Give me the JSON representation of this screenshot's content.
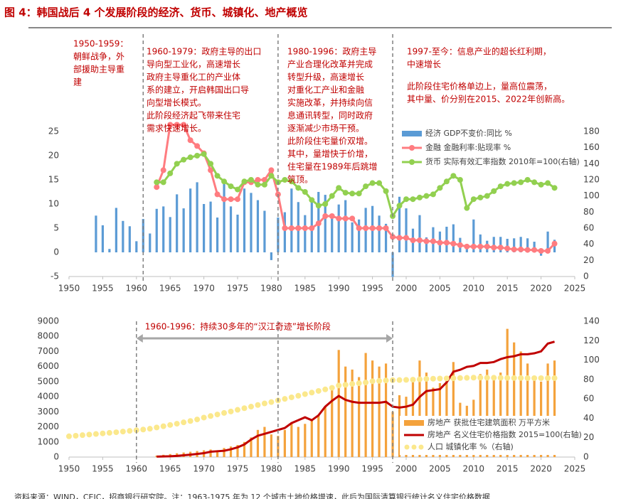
{
  "title": "图 4：韩国战后 4 个发展阶段的经济、货币、城镇化、地产概览",
  "footer": "资料来源：WIND，CEIC，招商银行研究院。注：1963-1975 年为 12 个城市土地价格增速，此后为国际清算银行统计名义住宅价格数据",
  "chart_data": [
    {
      "type": "combo",
      "legend": "top-right",
      "grid": false,
      "xlim": [
        1950,
        2025
      ],
      "xticks": [
        1950,
        1955,
        1960,
        1965,
        1970,
        1975,
        1980,
        1985,
        1990,
        1995,
        2000,
        2005,
        2010,
        2015,
        2020,
        2025
      ],
      "ylim": [
        -5,
        25
      ],
      "yticks": [
        -5,
        0,
        5,
        10,
        15,
        20,
        25
      ],
      "y2lim": [
        0,
        180
      ],
      "y2ticks": [
        0,
        20,
        40,
        60,
        80,
        100,
        120,
        140,
        160,
        180
      ],
      "dividers": [
        1961,
        1981,
        1998
      ],
      "annotations": [
        [
          "1950-1959：",
          "朝鲜战争，外",
          "部援助主导重",
          "建"
        ],
        [
          "1960-1979：政府主导的出口",
          "导向型工业化，高速增长",
          "  政府主导重化工的产业体",
          "系的建立，开启韩国出口导",
          "向型增长模式。",
          "  此阶段经济起飞带来住宅",
          "需求快速增长。"
        ],
        [
          "1980-1996：政府主导",
          "产业合理化改革并完成",
          "转型升级，高速增长",
          "  对重化工产业和金融",
          "实施改革，并持续向信",
          "息通讯转型，同时政府",
          "逐渐减少市场干预。",
          "  此阶段住宅量价双增。",
          "其中，量增快于价增，",
          "住宅量在1989年后跳增",
          "筑顶。"
        ],
        [
          "1997-至今：信息产业的超长红利期，",
          "中速增长"
        ],
        [
          "  此阶段住宅价格单边上，量高位震荡，",
          "其中量、价分别在2015、2022年创新高。"
        ]
      ],
      "series": [
        {
          "name": "经济 GDP不变价:同比 %",
          "type": "bar",
          "color": "#5b9bd5",
          "x": [
            1954,
            1955,
            1956,
            1957,
            1958,
            1959,
            1960,
            1961,
            1962,
            1963,
            1964,
            1965,
            1966,
            1967,
            1968,
            1969,
            1970,
            1971,
            1972,
            1973,
            1974,
            1975,
            1976,
            1977,
            1978,
            1979,
            1980,
            1981,
            1982,
            1983,
            1984,
            1985,
            1986,
            1987,
            1988,
            1989,
            1990,
            1991,
            1992,
            1993,
            1994,
            1995,
            1996,
            1997,
            1998,
            1999,
            2000,
            2001,
            2002,
            2003,
            2004,
            2005,
            2006,
            2007,
            2008,
            2009,
            2010,
            2011,
            2012,
            2013,
            2014,
            2015,
            2016,
            2017,
            2018,
            2019,
            2020,
            2021,
            2022
          ],
          "values": [
            7.6,
            5.6,
            0.7,
            9.2,
            6.5,
            5.4,
            2.3,
            6.9,
            3.9,
            9.0,
            9.5,
            7.3,
            12.0,
            9.1,
            13.2,
            14.5,
            10.0,
            10.5,
            7.2,
            14.9,
            9.5,
            7.8,
            13.2,
            12.3,
            10.8,
            8.6,
            -1.6,
            7.2,
            8.3,
            13.2,
            10.4,
            7.7,
            11.2,
            12.5,
            11.9,
            7.1,
            9.9,
            10.8,
            6.2,
            6.8,
            9.2,
            9.6,
            7.6,
            5.9,
            -5.1,
            11.5,
            9.1,
            4.9,
            7.7,
            3.1,
            5.2,
            4.3,
            5.3,
            5.8,
            3.0,
            0.8,
            6.8,
            3.7,
            2.4,
            3.2,
            3.2,
            2.8,
            2.9,
            3.2,
            2.9,
            2.2,
            -0.7,
            4.3,
            2.6
          ]
        },
        {
          "name": "金融 金融利率:贴现率 %",
          "type": "line",
          "marker": true,
          "color": "#ff7c80",
          "x": [
            1963,
            1964,
            1965,
            1966,
            1967,
            1968,
            1969,
            1970,
            1971,
            1972,
            1973,
            1974,
            1975,
            1976,
            1977,
            1978,
            1979,
            1980,
            1981,
            1982,
            1983,
            1984,
            1985,
            1986,
            1987,
            1988,
            1989,
            1990,
            1991,
            1992,
            1993,
            1994,
            1995,
            1996,
            1997,
            1998,
            1999,
            2000,
            2001,
            2002,
            2003,
            2004,
            2005,
            2006,
            2007,
            2008,
            2009,
            2010,
            2011,
            2012,
            2013,
            2014,
            2015,
            2016,
            2017,
            2018,
            2019,
            2020,
            2021,
            2022
          ],
          "values": [
            13.5,
            17.0,
            26.4,
            26.4,
            26.4,
            23.2,
            22.0,
            20.5,
            17.0,
            12.0,
            11.0,
            11.0,
            11.0,
            14.5,
            14.5,
            15.0,
            15.0,
            17.0,
            12.0,
            5.0,
            5.0,
            5.0,
            5.0,
            5.0,
            6.0,
            7.5,
            7.5,
            7.0,
            7.0,
            7.0,
            5.0,
            5.0,
            5.0,
            5.0,
            5.0,
            3.2,
            3.0,
            3.0,
            2.5,
            2.5,
            2.3,
            2.3,
            2.0,
            2.0,
            1.8,
            1.5,
            1.2,
            1.2,
            1.2,
            1.2,
            1.0,
            1.0,
            0.8,
            0.6,
            0.6,
            0.5,
            0.5,
            0.3,
            0.3,
            1.8
          ]
        },
        {
          "name": "货币 实际有效汇率指数 2010年=100(右轴)",
          "type": "line",
          "marker": true,
          "axis": "y2",
          "color": "#92d050",
          "x": [
            1963,
            1964,
            1965,
            1966,
            1967,
            1968,
            1969,
            1970,
            1971,
            1972,
            1973,
            1974,
            1975,
            1976,
            1977,
            1978,
            1979,
            1980,
            1981,
            1982,
            1983,
            1984,
            1985,
            1986,
            1987,
            1988,
            1989,
            1990,
            1991,
            1992,
            1993,
            1994,
            1995,
            1996,
            1997,
            1998,
            1999,
            2000,
            2001,
            2002,
            2003,
            2004,
            2005,
            2006,
            2007,
            2008,
            2009,
            2010,
            2011,
            2012,
            2013,
            2014,
            2015,
            2016,
            2017,
            2018,
            2019,
            2020,
            2021,
            2022
          ],
          "values": [
            117,
            117,
            128,
            140,
            145,
            148,
            150,
            152,
            140,
            125,
            118,
            112,
            108,
            118,
            120,
            114,
            114,
            125,
            117,
            120,
            118,
            110,
            105,
            95,
            88,
            90,
            100,
            110,
            104,
            103,
            103,
            112,
            116,
            116,
            106,
            75,
            88,
            96,
            96,
            98,
            100,
            102,
            110,
            118,
            125,
            120,
            85,
            96,
            98,
            100,
            106,
            112,
            115,
            116,
            117,
            120,
            117,
            114,
            116,
            110
          ]
        }
      ]
    },
    {
      "type": "combo",
      "legend": "bottom-right",
      "grid": false,
      "xlim": [
        1950,
        2025
      ],
      "xticks": [
        1950,
        1955,
        1960,
        1965,
        1970,
        1975,
        1980,
        1985,
        1990,
        1995,
        2000,
        2005,
        2010,
        2015,
        2020,
        2025
      ],
      "ylim": [
        0,
        9000
      ],
      "yticks": [
        0,
        1000,
        2000,
        3000,
        4000,
        5000,
        6000,
        7000,
        8000,
        9000
      ],
      "y2lim": [
        0,
        140
      ],
      "y2ticks": [
        0,
        20,
        40,
        60,
        80,
        100,
        120,
        140
      ],
      "dividers": [
        1960,
        1981,
        1998
      ],
      "arrow_label": "1960-1996：持续30多年的“汉江奇迹”增长阶段",
      "series": [
        {
          "name": "房地产 获批住宅建筑面积 万平方米",
          "type": "bar",
          "color": "#f4a23c",
          "x": [
            1963,
            1964,
            1965,
            1966,
            1967,
            1968,
            1969,
            1970,
            1971,
            1972,
            1973,
            1974,
            1975,
            1976,
            1977,
            1978,
            1979,
            1980,
            1981,
            1982,
            1983,
            1984,
            1985,
            1986,
            1987,
            1988,
            1989,
            1990,
            1991,
            1992,
            1993,
            1994,
            1995,
            1996,
            1997,
            1998,
            1999,
            2000,
            2001,
            2002,
            2003,
            2004,
            2005,
            2006,
            2007,
            2008,
            2009,
            2010,
            2011,
            2012,
            2013,
            2014,
            2015,
            2016,
            2017,
            2018,
            2019,
            2020,
            2021,
            2022
          ],
          "values": [
            100,
            150,
            200,
            250,
            300,
            350,
            400,
            450,
            500,
            450,
            600,
            700,
            800,
            1000,
            1300,
            1800,
            2000,
            1500,
            1400,
            1800,
            2300,
            2000,
            2200,
            2500,
            2800,
            3300,
            4500,
            7100,
            6000,
            5800,
            5300,
            6900,
            6400,
            6000,
            6200,
            3000,
            4100,
            4000,
            5100,
            6400,
            5600,
            4600,
            4900,
            5200,
            6300,
            3600,
            3400,
            3800,
            5500,
            5800,
            5300,
            5600,
            8500,
            7600,
            7000,
            6200,
            5200,
            5000,
            6200,
            6400
          ]
        },
        {
          "name": "房地产 名义住宅价格指数 2015=100(右轴)",
          "type": "line",
          "axis": "y2",
          "width": 3,
          "color": "#c00000",
          "x": [
            1963,
            1964,
            1965,
            1966,
            1967,
            1968,
            1969,
            1970,
            1971,
            1972,
            1973,
            1974,
            1975,
            1976,
            1977,
            1978,
            1979,
            1980,
            1981,
            1982,
            1983,
            1984,
            1985,
            1986,
            1987,
            1988,
            1989,
            1990,
            1991,
            1992,
            1993,
            1994,
            1995,
            1996,
            1997,
            1998,
            1999,
            2000,
            2001,
            2002,
            2003,
            2004,
            2005,
            2006,
            2007,
            2008,
            2009,
            2010,
            2011,
            2012,
            2013,
            2014,
            2015,
            2016,
            2017,
            2018,
            2019,
            2020,
            2021,
            2022
          ],
          "values": [
            0.5,
            0.6,
            0.8,
            1.2,
            1.8,
            2.5,
            3.2,
            4,
            5.5,
            6,
            6.5,
            8,
            10,
            13,
            18,
            22,
            24,
            26,
            28,
            30,
            35,
            38,
            41,
            38,
            43,
            52,
            58,
            63,
            59,
            57,
            56,
            56,
            56,
            56,
            57,
            52,
            51,
            52,
            54,
            62,
            68,
            69,
            70,
            77,
            88,
            90,
            93,
            94,
            97,
            97,
            98,
            101,
            103,
            104,
            106,
            106,
            107,
            109,
            117,
            119
          ]
        },
        {
          "name": "人口 城镇化率 %（右轴)",
          "type": "dots",
          "axis": "y2",
          "color": "#fbe88c",
          "x": [
            1950,
            1951,
            1952,
            1953,
            1954,
            1955,
            1956,
            1957,
            1958,
            1959,
            1960,
            1961,
            1962,
            1963,
            1964,
            1965,
            1966,
            1967,
            1968,
            1969,
            1970,
            1971,
            1972,
            1973,
            1974,
            1975,
            1976,
            1977,
            1978,
            1979,
            1980,
            1981,
            1982,
            1983,
            1984,
            1985,
            1986,
            1987,
            1988,
            1989,
            1990,
            1991,
            1992,
            1993,
            1994,
            1995,
            1996,
            1997,
            1998,
            1999,
            2000,
            2001,
            2002,
            2003,
            2004,
            2005,
            2006,
            2007,
            2008,
            2009,
            2010,
            2011,
            2012,
            2013,
            2014,
            2015,
            2016,
            2017,
            2018,
            2019,
            2020,
            2021,
            2022
          ],
          "values": [
            21.4,
            22,
            22.6,
            23.2,
            23.8,
            24.4,
            25,
            25.6,
            26.3,
            27,
            27.7,
            28.4,
            29.2,
            30.5,
            31.8,
            33.1,
            34.4,
            35.8,
            37.2,
            38.8,
            40.7,
            42.3,
            43.9,
            45.5,
            47,
            48.7,
            50.4,
            52,
            53.7,
            55.3,
            56.7,
            58.4,
            60,
            61.6,
            63.2,
            64.9,
            66.5,
            68.2,
            69.8,
            71.4,
            73.8,
            74.5,
            75.4,
            76.1,
            76.9,
            78.2,
            78.6,
            79,
            79.3,
            79.4,
            79.6,
            79.8,
            80.2,
            80.6,
            80.8,
            81,
            81.1,
            81.3,
            81.5,
            81.7,
            81.9,
            81.9,
            81.8,
            81.8,
            81.7,
            81.6,
            81.5,
            81.5,
            81.4,
            81.4,
            81.4,
            81.4,
            81.4
          ]
        }
      ]
    }
  ]
}
